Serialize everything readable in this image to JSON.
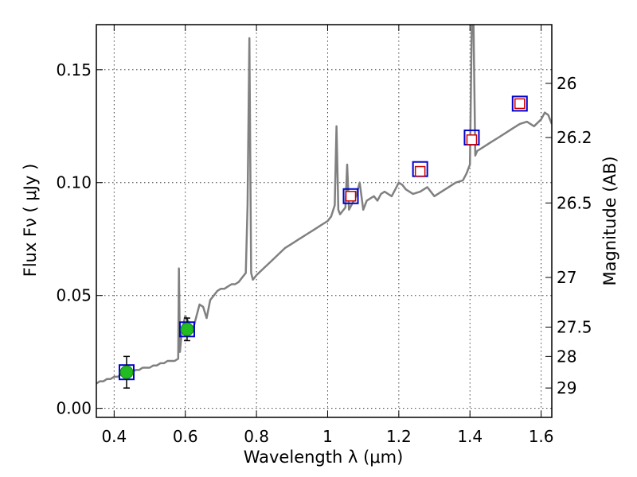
{
  "chart_data": {
    "type": "line",
    "xlabel": "Wavelength  λ (μm)",
    "ylabel": "Flux  Fν  ( μJy )",
    "y2label": "Magnitude (AB)",
    "xlim": [
      0.35,
      1.63
    ],
    "ylim": [
      -0.004,
      0.17
    ],
    "grid": true,
    "x_ticks": [
      0.4,
      0.6,
      0.8,
      1.0,
      1.2,
      1.4,
      1.6
    ],
    "x_tick_labels": [
      "0.4",
      "0.6",
      "0.8",
      "1",
      "1.2",
      "1.4",
      "1.6"
    ],
    "y_ticks": [
      0.0,
      0.05,
      0.1,
      0.15
    ],
    "y_tick_labels": [
      "0.00",
      "0.05",
      "0.10",
      "0.15"
    ],
    "right_axis_ticks": [
      {
        "label": "26",
        "flux": 0.144
      },
      {
        "label": "26.2",
        "flux": 0.12
      },
      {
        "label": "26.5",
        "flux": 0.091
      },
      {
        "label": "27",
        "flux": 0.058
      },
      {
        "label": "27.5",
        "flux": 0.036
      },
      {
        "label": "28",
        "flux": 0.023
      },
      {
        "label": "29",
        "flux": 0.009
      }
    ],
    "series": [
      {
        "kind": "model-spectrum",
        "color": "#808080",
        "x": [
          0.35,
          0.36,
          0.37,
          0.38,
          0.39,
          0.4,
          0.41,
          0.42,
          0.43,
          0.44,
          0.45,
          0.46,
          0.47,
          0.48,
          0.49,
          0.5,
          0.51,
          0.52,
          0.53,
          0.54,
          0.55,
          0.56,
          0.57,
          0.58,
          0.582,
          0.585,
          0.59,
          0.6,
          0.61,
          0.62,
          0.63,
          0.64,
          0.65,
          0.66,
          0.67,
          0.68,
          0.69,
          0.7,
          0.71,
          0.72,
          0.73,
          0.74,
          0.75,
          0.76,
          0.77,
          0.775,
          0.78,
          0.785,
          0.79,
          0.8,
          0.82,
          0.84,
          0.86,
          0.88,
          0.9,
          0.92,
          0.94,
          0.96,
          0.98,
          1.0,
          1.01,
          1.02,
          1.025,
          1.03,
          1.035,
          1.04,
          1.05,
          1.055,
          1.06,
          1.07,
          1.08,
          1.09,
          1.1,
          1.11,
          1.12,
          1.13,
          1.14,
          1.15,
          1.16,
          1.17,
          1.18,
          1.19,
          1.2,
          1.21,
          1.22,
          1.24,
          1.26,
          1.28,
          1.3,
          1.32,
          1.34,
          1.36,
          1.38,
          1.39,
          1.4,
          1.405,
          1.41,
          1.415,
          1.42,
          1.44,
          1.46,
          1.48,
          1.5,
          1.52,
          1.54,
          1.56,
          1.58,
          1.6,
          1.61,
          1.62,
          1.63
        ],
        "y": [
          0.011,
          0.012,
          0.012,
          0.013,
          0.013,
          0.014,
          0.014,
          0.015,
          0.015,
          0.016,
          0.016,
          0.017,
          0.017,
          0.018,
          0.018,
          0.018,
          0.019,
          0.019,
          0.02,
          0.02,
          0.021,
          0.021,
          0.021,
          0.022,
          0.062,
          0.025,
          0.034,
          0.041,
          0.038,
          0.034,
          0.04,
          0.046,
          0.045,
          0.04,
          0.048,
          0.05,
          0.052,
          0.053,
          0.053,
          0.054,
          0.055,
          0.055,
          0.056,
          0.058,
          0.06,
          0.09,
          0.164,
          0.06,
          0.057,
          0.059,
          0.062,
          0.065,
          0.068,
          0.071,
          0.073,
          0.075,
          0.077,
          0.079,
          0.081,
          0.083,
          0.085,
          0.09,
          0.125,
          0.088,
          0.086,
          0.087,
          0.089,
          0.108,
          0.088,
          0.091,
          0.094,
          0.1,
          0.088,
          0.092,
          0.093,
          0.094,
          0.092,
          0.095,
          0.096,
          0.095,
          0.094,
          0.097,
          0.1,
          0.099,
          0.097,
          0.095,
          0.096,
          0.098,
          0.094,
          0.096,
          0.098,
          0.1,
          0.101,
          0.104,
          0.108,
          0.17,
          0.17,
          0.112,
          0.114,
          0.116,
          0.118,
          0.12,
          0.122,
          0.124,
          0.126,
          0.127,
          0.125,
          0.128,
          0.131,
          0.13,
          0.126
        ]
      },
      {
        "kind": "synthetic-photometry",
        "color": "#0000cc",
        "marker": "square",
        "x": [
          0.435,
          0.605,
          1.065,
          1.26,
          1.405,
          1.54
        ],
        "y": [
          0.016,
          0.035,
          0.094,
          0.106,
          0.12,
          0.135
        ]
      },
      {
        "kind": "observed-upper-limits",
        "color": "#cc0000",
        "marker": "open-square",
        "x": [
          1.065,
          1.26,
          1.405,
          1.54
        ],
        "y": [
          0.094,
          0.105,
          0.119,
          0.135
        ]
      },
      {
        "kind": "observed-detections",
        "color": "#22bb22",
        "marker": "circle",
        "x": [
          0.435,
          0.605
        ],
        "y": [
          0.016,
          0.035
        ],
        "yerr": [
          0.007,
          0.005
        ]
      }
    ]
  }
}
